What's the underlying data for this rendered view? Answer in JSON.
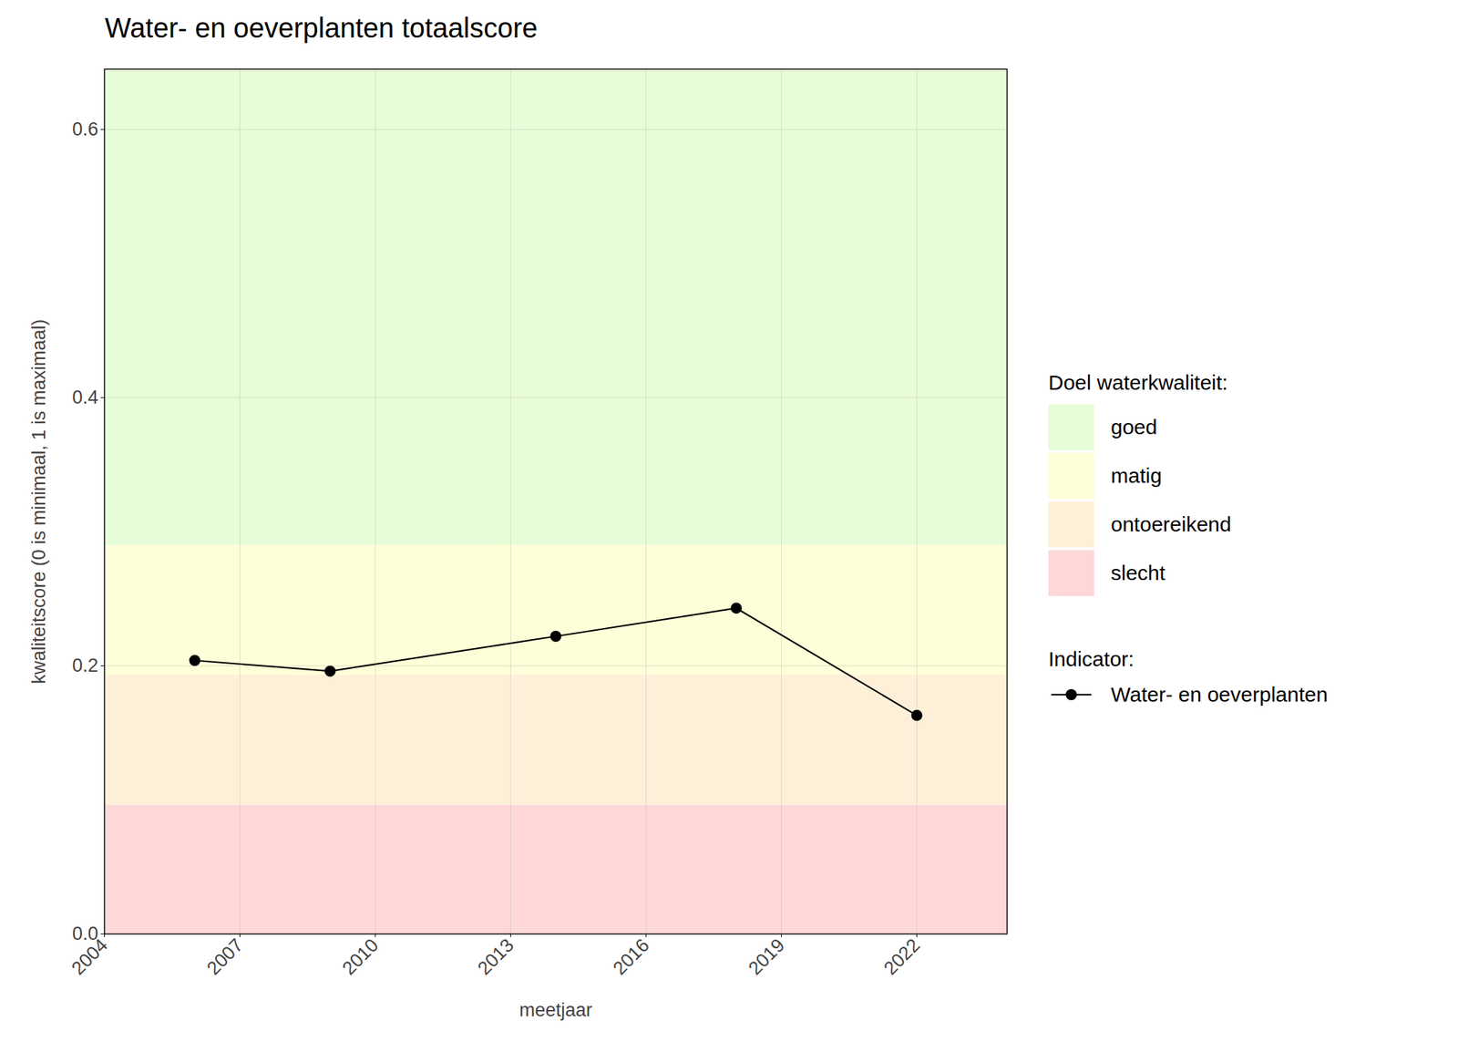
{
  "chart_data": {
    "type": "line",
    "title": "Water- en oeverplanten totaalscore",
    "x_label": "meetjaar",
    "y_label": "kwaliteitscore (0 is minimaal, 1 is maximaal)",
    "x": [
      2006,
      2009,
      2014,
      2018,
      2022
    ],
    "series": [
      {
        "name": "Water- en oeverplanten",
        "color": "#000000",
        "marker": "circle",
        "line_style": "solid",
        "values": [
          0.204,
          0.196,
          0.222,
          0.243,
          0.163
        ]
      }
    ],
    "xlim": [
      2004,
      2024
    ],
    "xticks": [
      2004,
      2007,
      2010,
      2013,
      2016,
      2019,
      2022
    ],
    "ylim": [
      0,
      0.645
    ],
    "yticks": [
      {
        "value": 0,
        "label": "0.0"
      },
      0.2,
      0.4,
      0.6
    ],
    "grid": true,
    "legend": "right",
    "legend_title": "Indicator:",
    "bands_title": "Doel waterkwaliteit:",
    "bands": [
      {
        "name": "goed",
        "color": "#e6fdd7",
        "from": 0.29,
        "to": 0.645
      },
      {
        "name": "matig",
        "color": "#fefed8",
        "from": 0.193,
        "to": 0.29
      },
      {
        "name": "ontoereikend",
        "color": "#fef0d8",
        "from": 0.096,
        "to": 0.193
      },
      {
        "name": "slecht",
        "color": "#fed8d8",
        "from": 0,
        "to": 0.096
      }
    ]
  }
}
